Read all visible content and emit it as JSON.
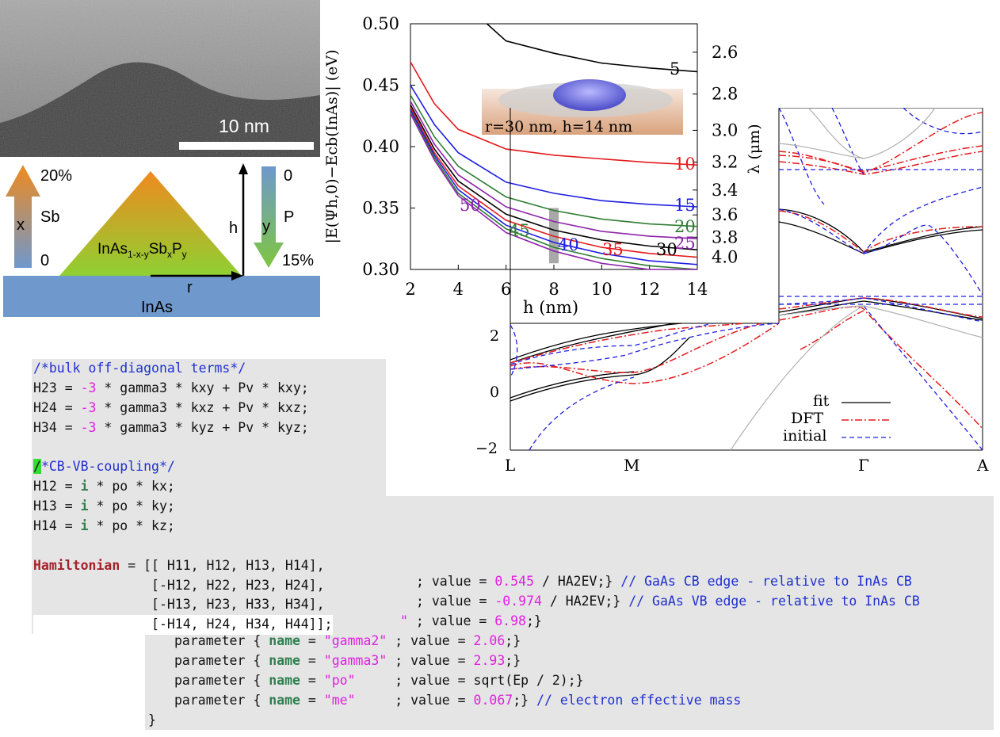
{
  "colors": {
    "code_bg": "#e5e5e5",
    "comment": "#1f2fd0",
    "number": "#e020e0",
    "keyword": "#2f7f4f",
    "keyword_red": "#a3222a",
    "inas_blue": "#6f98cc",
    "sb_orange": "#e88a1c",
    "p_green": "#7ec640",
    "highlight": "#33dd33"
  },
  "tem": {
    "scale_label": "10 nm"
  },
  "schematic": {
    "sb_top": "20%",
    "sb_var": "x",
    "sb_elem": "Sb",
    "sb_bottom": "0",
    "h_label": "h",
    "p_var": "y",
    "p_elem": "P",
    "p_top": "0",
    "p_bottom": "15%",
    "r_label": "r",
    "substrate": "InAs",
    "dot_formula": "InAs1-x-ySbxPy"
  },
  "chart_data": [
    {
      "type": "line",
      "xlabel": "h (nm)",
      "ylabel": "|E(Ψh,0)−Ecb(InAs)| (eV)",
      "y2label": "λ (μm)",
      "xlim": [
        2,
        14
      ],
      "ylim": [
        0.3,
        0.5
      ],
      "xticks": [
        "2",
        "4",
        "6",
        "8",
        "10",
        "12",
        "14"
      ],
      "yticks": [
        "0.30",
        "0.35",
        "0.40",
        "0.45",
        "0.50"
      ],
      "y2ticks": [
        "2.6",
        "2.8",
        "3.0",
        "3.2",
        "3.4",
        "3.6",
        "3.8",
        "4.0"
      ],
      "inset_label": "r=30 nm, h=14 nm",
      "x": [
        2,
        3,
        4,
        6,
        8,
        10,
        12,
        14
      ],
      "series": [
        {
          "name": "5",
          "color": "#000000",
          "values": [
            null,
            null,
            null,
            0.486,
            0.476,
            0.468,
            0.464,
            0.461
          ]
        },
        {
          "name": "10",
          "color": "#e41a1c",
          "values": [
            0.469,
            0.435,
            0.414,
            0.398,
            0.393,
            0.39,
            0.387,
            0.385
          ]
        },
        {
          "name": "15",
          "color": "#1f1fe0",
          "values": [
            0.45,
            0.418,
            0.395,
            0.371,
            0.362,
            0.356,
            0.353,
            0.351
          ]
        },
        {
          "name": "20",
          "color": "#2e7d32",
          "values": [
            0.442,
            0.408,
            0.384,
            0.359,
            0.348,
            0.341,
            0.337,
            0.335
          ]
        },
        {
          "name": "25",
          "color": "#8e24aa",
          "values": [
            0.437,
            0.402,
            0.377,
            0.351,
            0.339,
            0.331,
            0.327,
            0.325
          ]
        },
        {
          "name": "30",
          "color": "#000000",
          "values": [
            0.434,
            0.398,
            0.372,
            0.345,
            0.332,
            0.324,
            0.319,
            0.316
          ]
        },
        {
          "name": "35",
          "color": "#e41a1c",
          "values": [
            0.432,
            0.395,
            0.368,
            0.34,
            0.327,
            0.318,
            0.313,
            0.31
          ]
        },
        {
          "name": "40",
          "color": "#1f1fe0",
          "values": [
            0.43,
            0.393,
            0.365,
            0.336,
            0.322,
            0.313,
            0.307,
            0.304
          ]
        },
        {
          "name": "45",
          "color": "#2e7d32",
          "values": [
            0.428,
            0.391,
            0.362,
            0.333,
            0.318,
            0.309,
            0.303,
            0.3
          ]
        },
        {
          "name": "50",
          "color": "#8e24aa",
          "values": [
            0.427,
            0.389,
            0.36,
            0.33,
            0.315,
            0.305,
            0.3,
            0.297
          ]
        }
      ]
    },
    {
      "type": "line",
      "xticks": [
        "L",
        "M",
        "Γ",
        "A"
      ],
      "yticks": [
        "2",
        "0",
        "−2"
      ],
      "legend": [
        "fit",
        "DFT",
        "initial"
      ],
      "legend_position": "bottom-right"
    }
  ],
  "code": {
    "comment_bulk": "/*bulk off-diagonal terms*/",
    "h23_a": "H23 = ",
    "h23_n": "-3",
    "h23_b": " * gamma3 * kxy + Pv * kxy;",
    "h24_a": "H24 = ",
    "h24_n": "-3",
    "h24_b": " * gamma3 * kxz + Pv * kxz;",
    "h34_a": "H34 = ",
    "h34_n": "-3",
    "h34_b": " * gamma3 * kyz + Pv * kyz;",
    "hl_char": "/",
    "comment_cb": "*CB-VB-coupling*/",
    "h12_a": "H12 = ",
    "i": "i",
    "h12_b": " * po * kx;",
    "h13_a": "H13 = ",
    "h13_b": " * po * ky;",
    "h14_a": "H14 = ",
    "h14_b": " * po * kz;",
    "ham_kw": "Hamiltonian",
    "ham_1": " = [[ H11, H12, H13, H14],",
    "ham_2": "               [-H12, H22, H23, H24],",
    "ham_3": "               [-H13, H23, H33, H34],",
    "ham_4": "               [-H14, H24, H34, H44]];"
  },
  "code2": {
    "r1_a": "; value = ",
    "r1_n": "0.545",
    "r1_b": " / HA2EV;} ",
    "r1_c": "// GaAs CB edge - relative to InAs CB",
    "r2_a": "; value = ",
    "r2_n": "-0.974",
    "r2_b": " / HA2EV;} ",
    "r2_c": "// GaAs VB edge - relative to InAs CB",
    "r3_q": "\"",
    "r3_a": " ; value = ",
    "r3_n": "6.98",
    "r3_b": ";}",
    "r4_partial": "parameter { ",
    "r4_kw": "name",
    "r4_eq": " = ",
    "r4_s": "\"gamma2\"",
    "r4_a": " ; value = ",
    "r4_n": "2.06",
    "r4_b": ";}",
    "p_prefix": "parameter { ",
    "name_kw": "name",
    "eq": " = ",
    "r5_s": "\"gamma3\"",
    "r5_a": " ; value = ",
    "r5_n": "2.93",
    "r5_b": ";}",
    "r6_s": "\"po\"    ",
    "r6_a": " ; value = sqrt(Ep / 2);}",
    "r7_s": "\"me\"    ",
    "r7_a": " ; value = ",
    "r7_n": "0.067",
    "r7_b": ";} ",
    "r7_c": "// electron effective mass",
    "close": "}"
  }
}
